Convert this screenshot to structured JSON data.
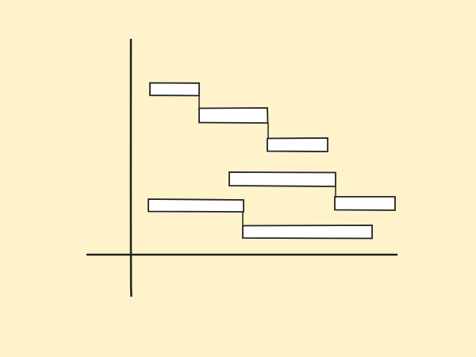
{
  "colors": {
    "background": "#fef3cb",
    "ink": "#222222",
    "bar_fill": "#ffffff"
  },
  "diagram": {
    "type": "gantt-style-bars",
    "labels": "none",
    "bar_count": 6,
    "connector_count": 4
  }
}
